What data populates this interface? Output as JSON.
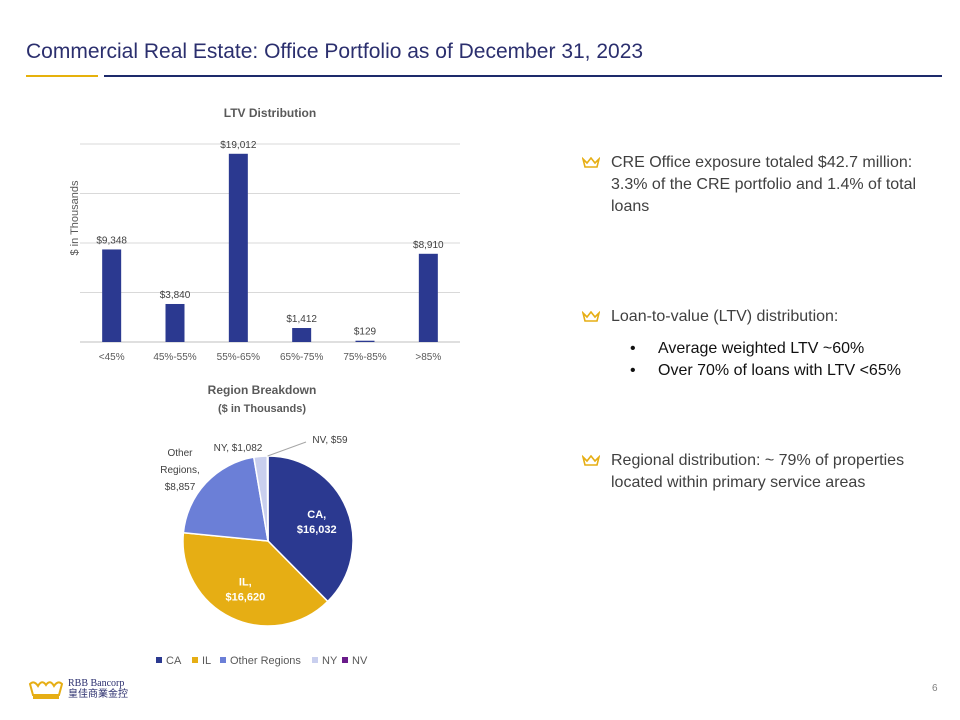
{
  "page": {
    "title": "Commercial Real Estate: Office Portfolio as of December 31, 2023",
    "page_number": "6",
    "logo": {
      "line1": "RBB Bancorp",
      "line2": "皇佳商業金控"
    }
  },
  "colors": {
    "navy": "#2b3990",
    "gold": "#e6ae14",
    "periwinkle": "#6b7fd7",
    "light": "#c9cfee",
    "purple": "#6a1b8a"
  },
  "bullets": [
    {
      "text": "CRE Office exposure totaled $42.7 million:  3.3% of the CRE portfolio and 1.4% of total loans"
    },
    {
      "text": "Loan-to-value (LTV) distribution:",
      "subitems": [
        "Average weighted LTV ~60%",
        "Over 70% of loans with LTV <65%"
      ]
    },
    {
      "text": "Regional distribution: ~ 79% of properties located within primary service areas"
    }
  ],
  "chart_data": [
    {
      "type": "bar",
      "title": "LTV Distribution",
      "ylabel": "$ in Thousands",
      "categories": [
        "<45%",
        "45%-55%",
        "55%-65%",
        "65%-75%",
        "75%-85%",
        ">85%"
      ],
      "values": [
        9348,
        3840,
        19012,
        1412,
        129,
        8910
      ],
      "value_labels": [
        "$9,348",
        "$3,840",
        "$19,012",
        "$1,412",
        "$129",
        "$8,910"
      ],
      "ylim": [
        0,
        20000
      ],
      "grid": true,
      "color": "#2b3990"
    },
    {
      "type": "pie",
      "title": "Region Breakdown",
      "subtitle": "($ in Thousands)",
      "legend_position": "bottom",
      "slices": [
        {
          "name": "CA",
          "value": 16032,
          "label": "$16,032",
          "color": "#2b3990"
        },
        {
          "name": "IL",
          "value": 16620,
          "label": "$16,620",
          "color": "#e6ae14"
        },
        {
          "name": "Other Regions",
          "value": 8857,
          "label": "$8,857",
          "color": "#6b7fd7"
        },
        {
          "name": "NY",
          "value": 1082,
          "label": "$1,082",
          "color": "#c9cfee"
        },
        {
          "name": "NV",
          "value": 59,
          "label": "$59",
          "color": "#6a1b8a"
        }
      ]
    }
  ]
}
